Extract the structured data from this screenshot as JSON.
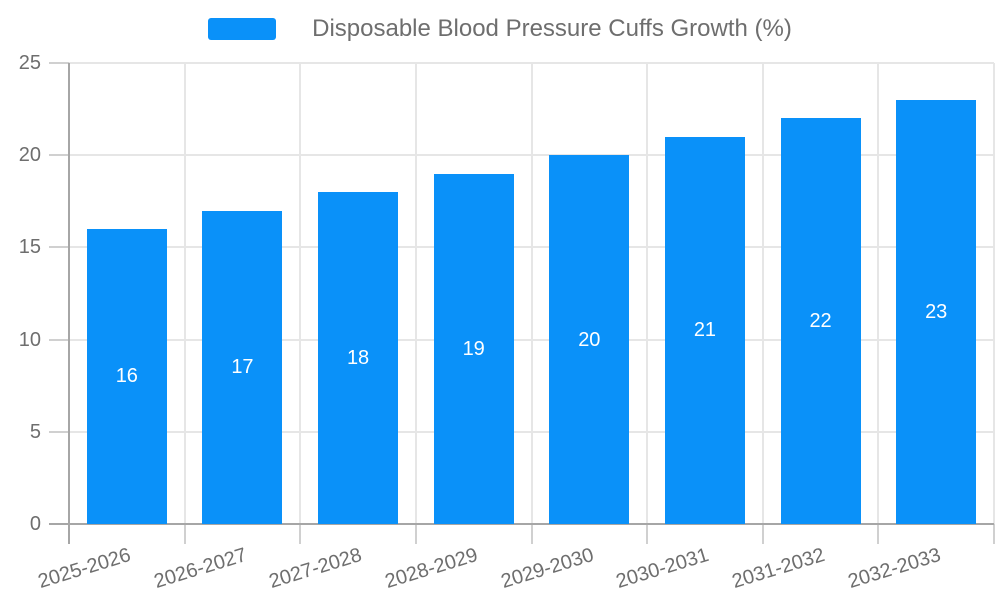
{
  "chart_data": {
    "type": "bar",
    "title": "Disposable Blood Pressure Cuffs Growth (%)",
    "legend": {
      "position": "top-center",
      "entries": [
        "Disposable Blood Pressure Cuffs Growth (%)"
      ]
    },
    "categories": [
      "2025-2026",
      "2026-2027",
      "2027-2028",
      "2028-2029",
      "2029-2030",
      "2030-2031",
      "2031-2032",
      "2032-2033"
    ],
    "values": [
      16,
      17,
      18,
      19,
      20,
      21,
      22,
      23
    ],
    "value_labels": [
      "16",
      "17",
      "18",
      "19",
      "20",
      "21",
      "22",
      "23"
    ],
    "xlabel": "",
    "ylabel": "",
    "ylim": [
      0,
      25
    ],
    "yticks": [
      0,
      5,
      10,
      15,
      20,
      25
    ],
    "grid": true,
    "colors": {
      "bar": "#0a91f9",
      "background": "#ffffff",
      "grid_line": "#e6e6e6",
      "axis_line": "#a6a6a6",
      "tick_mark": "#d0d0d0",
      "tick_label": "#6e6e6e",
      "legend_label": "#6e6e6e",
      "value_label": "#ffffff"
    }
  }
}
